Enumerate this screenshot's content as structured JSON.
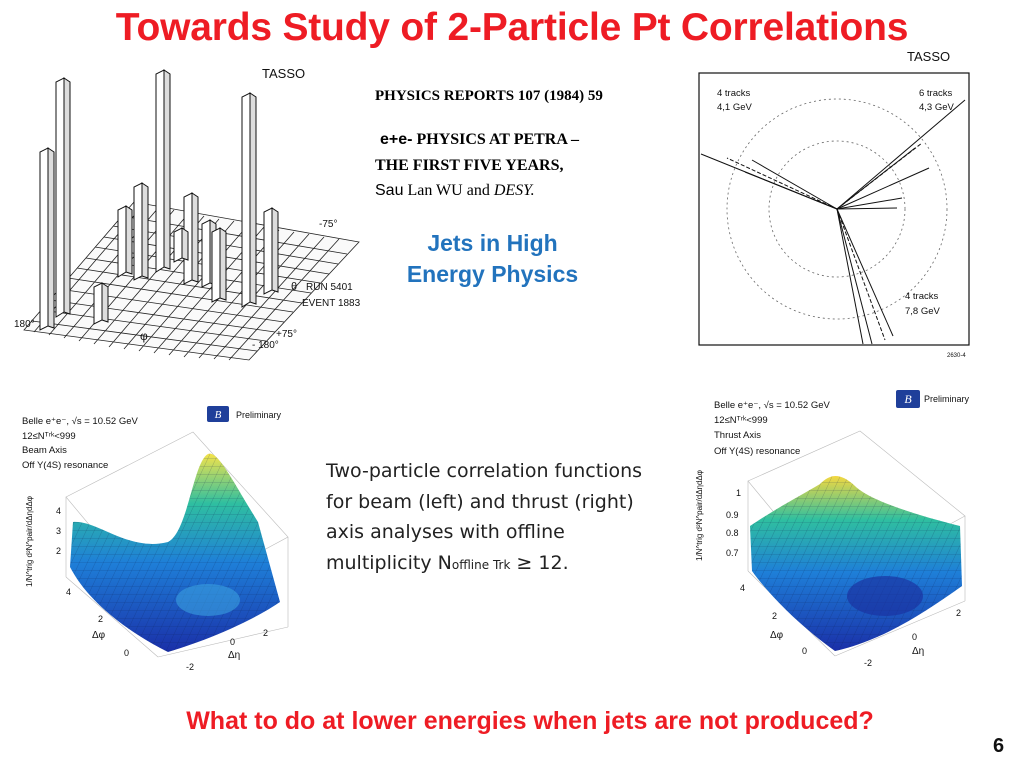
{
  "title": "Towards Study of 2-Particle Pt Correlations",
  "reference": {
    "journal": "PHYSICS REPORTS  107 (1984) 59",
    "title_prefix": "e+e-",
    "title_line1": " PHYSICS AT PETRA –",
    "title_line2": "THE FIRST  FIVE YEARS,",
    "author_first": "Sau",
    "author_rest": " Lan WU and ",
    "institution": "DESY."
  },
  "book": {
    "line1": "Jets in High",
    "line2": "Energy Physics"
  },
  "lego_plot": {
    "label": "TASSO",
    "angle_minus75": "-75°",
    "axis_theta": "θ",
    "run": "RUN 5401",
    "event": "EVENT 1883",
    "angle_180": "180°",
    "axis_phi": "φ",
    "angle_plus75": "+75°",
    "angle_minus180": "- 180°"
  },
  "event_display": {
    "label": "TASSO",
    "jets": [
      {
        "tracks": "4 tracks",
        "energy": "4,1 GeV"
      },
      {
        "tracks": "6 tracks",
        "energy": "4,3 GeV"
      },
      {
        "tracks": "4 tracks",
        "energy": "7,8 GeV"
      }
    ],
    "figure_number": "2630-4"
  },
  "belle_left": {
    "line1": "Belle e⁺e⁻, √s = 10.52 GeV",
    "line2": "12≤Nᵀʳᵏ<999",
    "line3": "Beam Axis",
    "line4": "Off Y(4S) resonance",
    "badge": "Preliminary",
    "zlabel": "1/N^trig d²N^pair/dΔηdΔφ",
    "zticks": [
      "4",
      "3",
      "2"
    ],
    "phi_ticks": [
      "4",
      "2",
      "0"
    ],
    "phi_label": "Δφ",
    "eta_ticks": [
      "2",
      "0",
      "-2"
    ],
    "eta_label": "Δη"
  },
  "belle_right": {
    "line1": "Belle e⁺e⁻, √s = 10.52 GeV",
    "line2": "12≤Nᵀʳᵏ<999",
    "line3": "Thrust Axis",
    "line4": "Off Y(4S) resonance",
    "badge": "Preliminary",
    "zlabel": "1/N^trig d²N^pair/dΔηdΔφ",
    "zticks": [
      "1",
      "0.9",
      "0.8",
      "0.7"
    ],
    "phi_ticks": [
      "4",
      "2",
      "0"
    ],
    "phi_label": "Δφ",
    "eta_ticks": [
      "2",
      "0",
      "-2"
    ],
    "eta_label": "Δη"
  },
  "description": {
    "line1": "Two-particle correlation functions",
    "line2": "for beam (left) and thrust (right)",
    "line3": "axis analyses with offline",
    "line4_prefix": "multiplicity N",
    "line4_sub": "offline Trk",
    "line4_suffix": " ≥ 12."
  },
  "question": "What to do at lower energies  when jets are not produced?",
  "page_number": "6"
}
